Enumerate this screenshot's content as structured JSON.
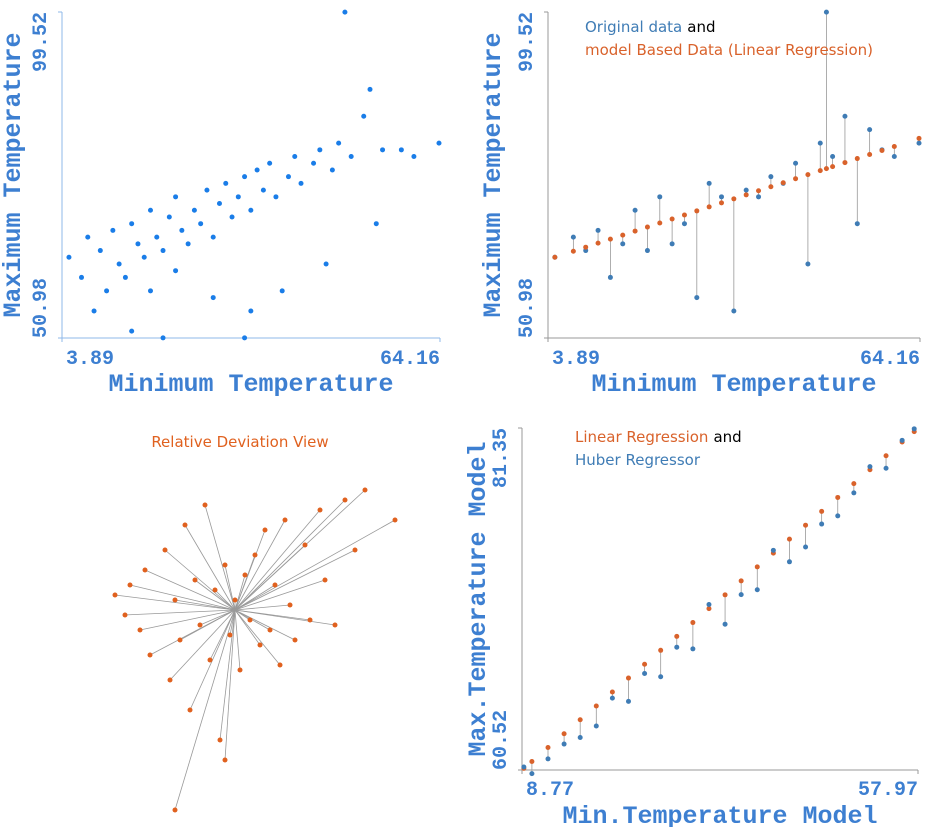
{
  "chart_data": [
    {
      "type": "scatter",
      "x_label": "Minimum Temperature",
      "y_label": "Maximum Temperature",
      "xlim": [
        3.89,
        64.16
      ],
      "ylim": [
        50.98,
        99.52
      ],
      "xticks": [
        3.89,
        64.16
      ],
      "yticks": [
        50.98,
        99.52
      ],
      "color": "#1a7de8",
      "x": [
        5,
        7,
        8,
        9,
        10,
        11,
        12,
        13,
        14,
        15,
        15,
        16,
        17,
        18,
        18,
        19,
        20,
        21,
        22,
        22,
        23,
        24,
        25,
        26,
        27,
        28,
        28,
        29,
        30,
        31,
        32,
        33,
        34,
        34,
        35,
        36,
        37,
        38,
        39,
        40,
        41,
        42,
        44,
        45,
        46,
        47,
        48,
        50,
        52,
        53,
        54,
        55,
        58,
        60,
        64,
        49,
        33,
        20
      ],
      "values": [
        63,
        60,
        66,
        55,
        64,
        58,
        67,
        62,
        60,
        68,
        52,
        65,
        63,
        70,
        58,
        66,
        64,
        69,
        61,
        72,
        67,
        65,
        70,
        68,
        73,
        66,
        57,
        71,
        74,
        69,
        72,
        75,
        70,
        55,
        76,
        73,
        77,
        72,
        58,
        75,
        78,
        74,
        77,
        79,
        62,
        76,
        80,
        78,
        84,
        88,
        68,
        79,
        79,
        78,
        80,
        99.5,
        51,
        51
      ]
    },
    {
      "type": "paired",
      "x_label": "Minimum Temperature",
      "y_label": "Maximum Temperature",
      "xlim": [
        3.89,
        64.16
      ],
      "ylim": [
        50.98,
        99.52
      ],
      "xticks": [
        3.89,
        64.16
      ],
      "yticks": [
        50.98,
        99.52
      ],
      "legend_joiner": "and",
      "x": [
        5,
        8,
        10,
        12,
        14,
        16,
        18,
        20,
        22,
        24,
        26,
        28,
        30,
        32,
        34,
        36,
        38,
        40,
        42,
        44,
        46,
        48,
        50,
        52,
        54,
        56,
        58,
        60,
        64,
        49
      ],
      "series": [
        {
          "name": "Original data",
          "color": "#3f7cb5",
          "values": [
            63,
            66,
            64,
            67,
            60,
            65,
            70,
            64,
            72,
            65,
            68,
            57,
            74,
            72,
            55,
            73,
            72,
            75,
            74,
            77,
            62,
            80,
            78,
            84,
            68,
            82,
            79,
            78,
            80,
            99.5
          ]
        },
        {
          "name": "model Based Data (Linear Regression)",
          "color": "#d9622b",
          "values": [
            63.0,
            63.9,
            64.5,
            65.1,
            65.7,
            66.3,
            66.9,
            67.5,
            68.1,
            68.7,
            69.3,
            69.9,
            70.5,
            71.1,
            71.7,
            72.3,
            72.9,
            73.5,
            74.1,
            74.7,
            75.3,
            75.9,
            76.5,
            77.1,
            77.7,
            78.3,
            78.9,
            79.5,
            80.7,
            76.2
          ]
        }
      ]
    },
    {
      "type": "deviation",
      "title": "Relative Deviation View",
      "color": "#e0611f",
      "x": [
        -1.2,
        -1.1,
        -1.05,
        -0.95,
        -0.9,
        -0.85,
        -0.7,
        -0.65,
        -0.6,
        -0.55,
        -0.5,
        -0.45,
        -0.4,
        -0.35,
        -0.3,
        -0.25,
        -0.2,
        -0.15,
        -0.1,
        -0.05,
        0,
        0.05,
        0.1,
        0.15,
        0.2,
        0.25,
        0.3,
        0.35,
        0.4,
        0.45,
        0.5,
        0.55,
        0.6,
        0.7,
        0.75,
        0.85,
        0.9,
        1.0,
        1.1,
        1.2,
        1.3,
        1.6,
        -0.6,
        -0.1
      ],
      "values": [
        0.15,
        -0.05,
        0.25,
        -0.2,
        0.4,
        -0.45,
        0.6,
        -0.7,
        0.1,
        -0.3,
        0.85,
        -1.0,
        0.3,
        -0.15,
        1.05,
        -0.5,
        0.2,
        -1.3,
        0.45,
        -0.25,
        0.1,
        -0.6,
        0.35,
        -0.1,
        0.55,
        -0.35,
        0.8,
        -0.2,
        0.25,
        -0.55,
        0.9,
        0.05,
        -0.3,
        0.65,
        -0.1,
        1.0,
        0.3,
        -0.15,
        1.1,
        0.6,
        1.2,
        0.9,
        -2.0,
        -1.5
      ]
    },
    {
      "type": "paired",
      "x_label": "Min.Temperature Model",
      "y_label": "Max.Temperature Model",
      "xlim": [
        8.77,
        57.97
      ],
      "ylim": [
        60.52,
        81.35
      ],
      "xticks": [
        8.77,
        57.97
      ],
      "yticks": [
        60.52,
        81.35
      ],
      "legend_joiner": "and",
      "x": [
        9,
        10,
        12,
        14,
        16,
        18,
        20,
        22,
        24,
        26,
        28,
        30,
        32,
        34,
        36,
        38,
        40,
        42,
        44,
        46,
        48,
        50,
        52,
        54,
        56,
        57.5
      ],
      "series": [
        {
          "name": "Linear Regression",
          "color": "#d9622b",
          "values": [
            60.62,
            61.04,
            61.89,
            62.73,
            63.58,
            64.42,
            65.27,
            66.12,
            66.96,
            67.81,
            68.66,
            69.5,
            70.35,
            71.19,
            72.04,
            72.89,
            73.73,
            74.58,
            75.43,
            76.27,
            77.12,
            77.96,
            78.81,
            79.66,
            80.5,
            81.13
          ]
        },
        {
          "name": "Huber Regressor",
          "color": "#3f7cb5",
          "values": [
            60.7,
            60.3,
            61.2,
            62.1,
            62.5,
            63.2,
            64.9,
            64.7,
            66.4,
            66.2,
            68.0,
            67.9,
            70.6,
            69.4,
            71.2,
            71.5,
            73.9,
            73.2,
            74.1,
            75.5,
            76.0,
            77.4,
            79.0,
            78.9,
            80.6,
            81.3
          ]
        }
      ]
    }
  ]
}
